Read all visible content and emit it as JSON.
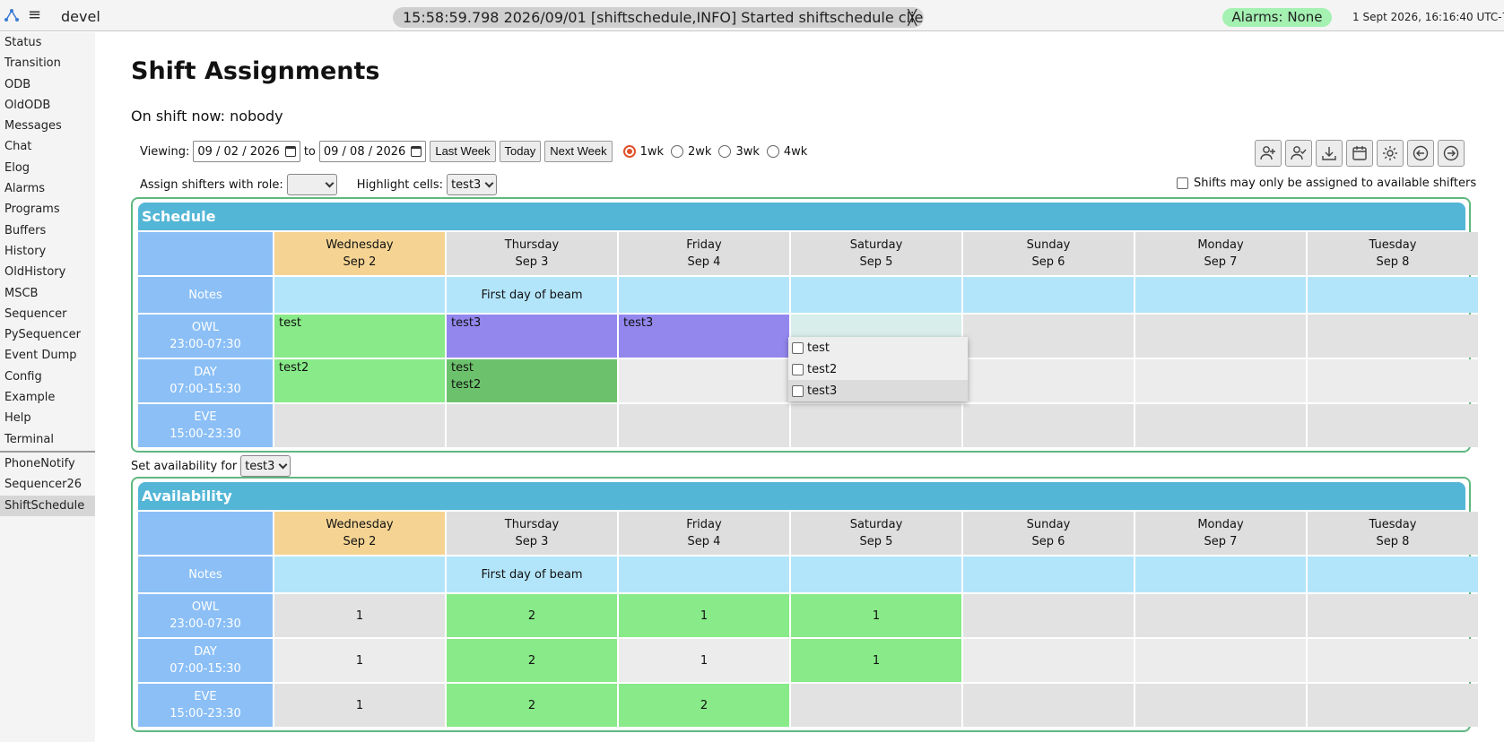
{
  "topbar": {
    "app_name": "devel",
    "message": "15:58:59.798 2026/09/01 [shiftschedule,INFO] Started shiftschedule client",
    "message_close": "╳",
    "alarms": "Alarms: None",
    "clock": "1 Sept 2026, 16:16:40 UTC-7"
  },
  "sidebar": {
    "items": [
      "Status",
      "Transition",
      "ODB",
      "OldODB",
      "Messages",
      "Chat",
      "Elog",
      "Alarms",
      "Programs",
      "Buffers",
      "History",
      "OldHistory",
      "MSCB",
      "Sequencer",
      "PySequencer",
      "Event Dump",
      "Config",
      "Example",
      "Help",
      "Terminal"
    ],
    "custom_items": [
      "PhoneNotify",
      "Sequencer26",
      "ShiftSchedule"
    ],
    "active": "ShiftSchedule"
  },
  "page": {
    "title": "Shift Assignments",
    "on_shift": "On shift now: nobody"
  },
  "viewing": {
    "label": "Viewing:",
    "start_date": "09 / 02 / 2026",
    "to_label": "to",
    "end_date": "09 / 08 / 2026",
    "last_week": "Last Week",
    "today": "Today",
    "next_week": "Next Week",
    "ranges": [
      "1wk",
      "2wk",
      "3wk",
      "4wk"
    ],
    "selected_range": "1wk"
  },
  "toolbar_icons": [
    "add-user-icon",
    "user-check-icon",
    "download-icon",
    "calendar-icon",
    "gear-icon",
    "arrow-left-circle-icon",
    "arrow-right-circle-icon"
  ],
  "assign": {
    "role_label": "Assign shifters with role:",
    "role_value": "",
    "highlight_label": "Highlight cells:",
    "highlight_value": "test3",
    "only_available": "Shifts may only be assigned to available shifters"
  },
  "days": [
    {
      "name": "Wednesday",
      "date": "Sep 2"
    },
    {
      "name": "Thursday",
      "date": "Sep 3"
    },
    {
      "name": "Friday",
      "date": "Sep 4"
    },
    {
      "name": "Saturday",
      "date": "Sep 5"
    },
    {
      "name": "Sunday",
      "date": "Sep 6"
    },
    {
      "name": "Monday",
      "date": "Sep 7"
    },
    {
      "name": "Tuesday",
      "date": "Sep 8"
    }
  ],
  "shifts": [
    {
      "name": "OWL",
      "time": "23:00-07:30"
    },
    {
      "name": "DAY",
      "time": "07:00-15:30"
    },
    {
      "name": "EVE",
      "time": "15:00-23:30"
    }
  ],
  "schedule": {
    "title": "Schedule",
    "notes_label": "Notes",
    "notes": [
      "",
      "First day of beam",
      "",
      "",
      "",
      "",
      ""
    ],
    "rows": [
      [
        "test",
        "test3",
        "test3",
        "",
        "",
        "",
        ""
      ],
      [
        "test2",
        "test\ntest2",
        "",
        "",
        "",
        "",
        ""
      ],
      [
        "",
        "",
        "",
        "",
        "",
        "",
        ""
      ]
    ]
  },
  "set_availability": {
    "label": "Set availability for",
    "value": "test3"
  },
  "availability": {
    "title": "Availability",
    "notes_label": "Notes",
    "notes": [
      "",
      "First day of beam",
      "",
      "",
      "",
      "",
      ""
    ],
    "rows": [
      [
        "1",
        "2",
        "1",
        "1",
        "",
        "",
        ""
      ],
      [
        "1",
        "2",
        "1",
        "1",
        "",
        "",
        ""
      ],
      [
        "1",
        "2",
        "2",
        "",
        "",
        "",
        ""
      ]
    ]
  },
  "popup": {
    "options": [
      "test",
      "test2",
      "test3"
    ],
    "hovered": "test3"
  },
  "colors": {
    "today_header": "#f5d493",
    "assigned": "#88ea88",
    "highlight": "#9387ee",
    "panel_header": "#54b6d6",
    "row_label": "#8bbff6",
    "notes": "#b3e5fa"
  }
}
